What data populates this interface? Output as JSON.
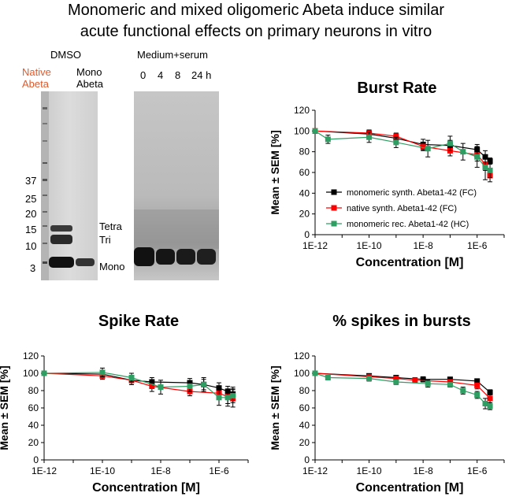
{
  "figure": {
    "title_line1": "Monomeric and mixed oligomeric Abeta induce similar",
    "title_line2": "acute functional effects on primary neurons in vitro"
  },
  "gel": {
    "left_header": "DMSO",
    "lane1_label_line1": "Native",
    "lane1_label_line2": "Abeta",
    "lane2_label_line1": "Mono",
    "lane2_label_line2": "Abeta",
    "right_header": "Medium+serum",
    "time_labels": [
      "0",
      "4",
      "8",
      "24 h"
    ],
    "mw_markers": [
      "37",
      "25",
      "20",
      "15",
      "10",
      "3"
    ],
    "band_labels": [
      "Tetra",
      "Tri",
      "Mono"
    ],
    "colors": {
      "native_label": "#e05a2b"
    }
  },
  "chart_data": [
    {
      "type": "line",
      "title": "Burst Rate",
      "xlabel": "Concentration [M]",
      "ylabel": "Mean ± SEM [%]",
      "x_scale": "log",
      "xlim": [
        1e-12,
        1e-05
      ],
      "ylim": [
        0,
        120
      ],
      "yticks": [
        0,
        20,
        40,
        60,
        80,
        100,
        120
      ],
      "xtick_labels": [
        "1E-12",
        "1E-10",
        "1E-8",
        "1E-6"
      ],
      "legend_position": "bottom-right",
      "series": [
        {
          "name": "monomeric synth. Abeta1-42 (FC)",
          "color": "#000000",
          "x": [
            1e-12,
            1e-10,
            1e-09,
            1e-08,
            1e-07,
            1e-06,
            2e-06,
            3e-06
          ],
          "y": [
            100,
            97,
            93,
            87,
            86,
            82,
            75,
            71
          ],
          "err": [
            2,
            4,
            3,
            5,
            5,
            5,
            6,
            3
          ]
        },
        {
          "name": "native synth. Abeta1-42 (FC)",
          "color": "#ff0000",
          "x": [
            1e-12,
            1e-10,
            1e-09,
            1e-08,
            1e-07,
            1e-06,
            2e-06,
            3e-06
          ],
          "y": [
            100,
            98,
            95,
            85,
            81,
            77,
            68,
            57
          ],
          "err": [
            2,
            3,
            3,
            4,
            5,
            6,
            6,
            6
          ]
        },
        {
          "name": "monomeric rec. Abeta1-42 (HC)",
          "color": "#2e9e62",
          "x": [
            1e-12,
            3e-12,
            1e-10,
            1e-09,
            1.5e-08,
            1e-07,
            3e-07,
            1e-06,
            2e-06,
            3e-06
          ],
          "y": [
            100,
            92,
            94,
            89,
            83,
            88,
            80,
            75,
            65,
            62
          ],
          "err": [
            2,
            4,
            5,
            5,
            8,
            7,
            8,
            10,
            12,
            7
          ]
        }
      ]
    },
    {
      "type": "line",
      "title": "Spike Rate",
      "xlabel": "Concentration [M]",
      "ylabel": "Mean ± SEM [%]",
      "x_scale": "log",
      "xlim": [
        1e-12,
        1e-05
      ],
      "ylim": [
        0,
        120
      ],
      "yticks": [
        0,
        20,
        40,
        60,
        80,
        100,
        120
      ],
      "xtick_labels": [
        "1E-12",
        "1E-10",
        "1E-8",
        "1E-6"
      ],
      "series": [
        {
          "name": "monomeric synth. Abeta1-42 (FC)",
          "color": "#000000",
          "x": [
            1e-12,
            1e-10,
            1e-09,
            5e-09,
            1e-07,
            3e-07,
            1e-06,
            2e-06,
            3e-06
          ],
          "y": [
            100,
            99,
            92,
            90,
            89,
            87,
            83,
            79,
            76
          ],
          "err": [
            2,
            4,
            5,
            5,
            5,
            6,
            6,
            6,
            8
          ]
        },
        {
          "name": "native synth. Abeta1-42 (FC)",
          "color": "#ff0000",
          "x": [
            1e-12,
            1e-10,
            1e-09,
            5e-09,
            1e-07,
            1e-06,
            2e-06,
            3e-06
          ],
          "y": [
            100,
            97,
            92,
            85,
            79,
            77,
            73,
            71
          ],
          "err": [
            2,
            4,
            5,
            6,
            5,
            7,
            8,
            10
          ]
        },
        {
          "name": "monomeric rec. Abeta1-42 (HC)",
          "color": "#2e9e62",
          "x": [
            1e-12,
            1e-10,
            1e-09,
            1e-08,
            1e-07,
            3e-07,
            1e-06,
            2e-06,
            3e-06
          ],
          "y": [
            100,
            101,
            95,
            84,
            85,
            87,
            72,
            72,
            74
          ],
          "err": [
            2,
            5,
            5,
            8,
            6,
            8,
            9,
            10,
            8
          ]
        }
      ]
    },
    {
      "type": "line",
      "title": "% spikes in bursts",
      "xlabel": "Concentration [M]",
      "ylabel": "Mean ± SEM [%]",
      "x_scale": "log",
      "xlim": [
        1e-12,
        1e-05
      ],
      "ylim": [
        0,
        120
      ],
      "yticks": [
        0,
        20,
        40,
        60,
        80,
        100,
        120
      ],
      "xtick_labels": [
        "1E-12",
        "1E-10",
        "1E-8",
        "1E-6"
      ],
      "series": [
        {
          "name": "monomeric synth. Abeta1-42 (FC)",
          "color": "#000000",
          "x": [
            1e-12,
            1e-10,
            1e-09,
            1e-08,
            1e-07,
            1e-06,
            3e-06
          ],
          "y": [
            100,
            97,
            95,
            93,
            93,
            91,
            78
          ],
          "err": [
            2,
            2,
            2,
            3,
            2,
            2,
            3
          ]
        },
        {
          "name": "native synth. Abeta1-42 (FC)",
          "color": "#ff0000",
          "x": [
            1e-12,
            1e-10,
            1e-09,
            5e-09,
            1e-07,
            1e-06,
            3e-06
          ],
          "y": [
            100,
            96,
            94,
            92,
            90,
            86,
            71
          ],
          "err": [
            2,
            2,
            2,
            3,
            3,
            4,
            5
          ]
        },
        {
          "name": "monomeric rec. Abeta1-42 (HC)",
          "color": "#2e9e62",
          "x": [
            1e-12,
            3e-12,
            1e-10,
            1e-09,
            1.5e-08,
            1e-07,
            3e-07,
            1e-06,
            2e-06,
            3e-06
          ],
          "y": [
            100,
            95,
            94,
            90,
            88,
            87,
            80,
            75,
            65,
            62
          ],
          "err": [
            2,
            2,
            3,
            3,
            4,
            3,
            4,
            4,
            6,
            4
          ]
        }
      ]
    }
  ]
}
